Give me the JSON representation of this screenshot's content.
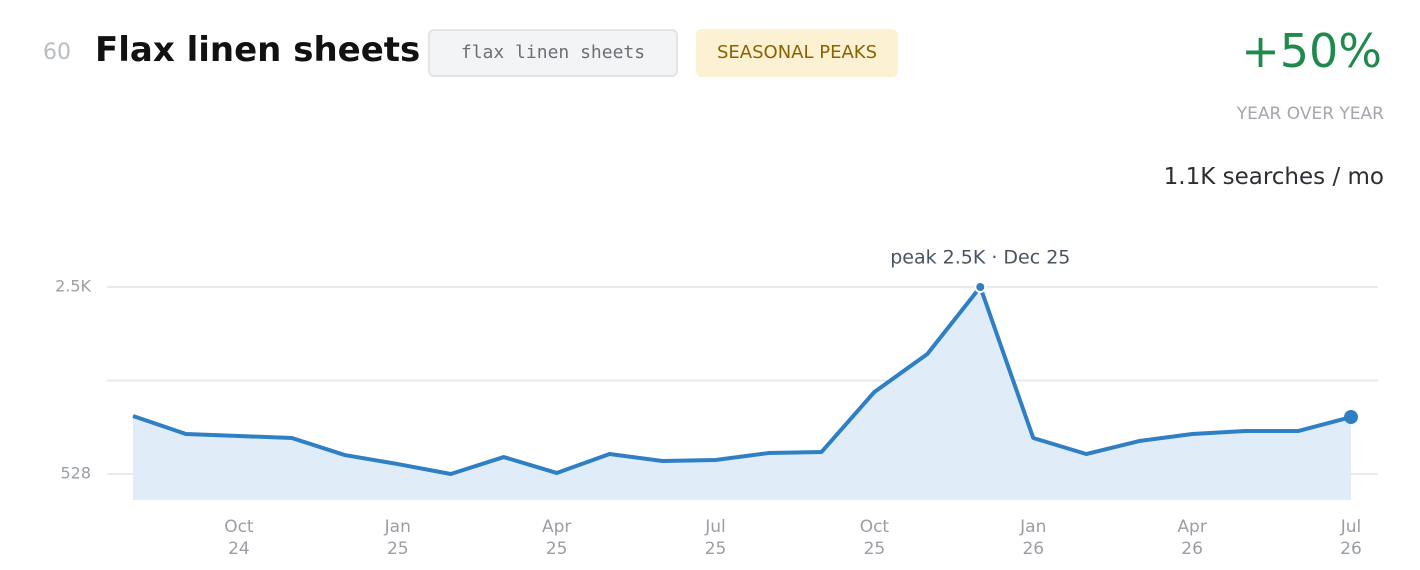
{
  "header": {
    "rank": "60",
    "title": "Flax linen sheets",
    "keyword": "flax linen sheets",
    "badge": "SEASONAL PEAKS",
    "change": "+50%",
    "change_label": "YEAR OVER YEAR",
    "volume": "1.1K searches / mo"
  },
  "chart_data": {
    "type": "line",
    "annotation": "peak 2.5K · Dec 25",
    "color": "#2f7fc4",
    "fill": "#e0ecf7",
    "x": [
      "2024-08",
      "2024-09",
      "2024-10",
      "2024-11",
      "2024-12",
      "2025-01",
      "2025-02",
      "2025-03",
      "2025-04",
      "2025-05",
      "2025-06",
      "2025-07",
      "2025-08",
      "2025-09",
      "2025-10",
      "2025-11",
      "2025-12",
      "2026-01",
      "2026-02",
      "2026-03",
      "2026-04",
      "2026-05",
      "2026-06",
      "2026-07"
    ],
    "values": [
      1140,
      950,
      929,
      908,
      728,
      633,
      528,
      707,
      539,
      739,
      665,
      676,
      749,
      760,
      1393,
      1793,
      2500,
      908,
      739,
      876,
      950,
      981,
      981,
      1129
    ],
    "ylim": [
      254,
      2500
    ],
    "yticks": [
      528,
      {
        "value": 2500,
        "label": "2.5K"
      }
    ],
    "gridlines": [
      528,
      1514,
      2500
    ],
    "xticks": [
      {
        "value": "2024-10",
        "month": "Oct",
        "year": "24"
      },
      {
        "value": "2025-01",
        "month": "Jan",
        "year": "25"
      },
      {
        "value": "2025-04",
        "month": "Apr",
        "year": "25"
      },
      {
        "value": "2025-07",
        "month": "Jul",
        "year": "25"
      },
      {
        "value": "2025-10",
        "month": "Oct",
        "year": "25"
      },
      {
        "value": "2026-01",
        "month": "Jan",
        "year": "26"
      },
      {
        "value": "2026-04",
        "month": "Apr",
        "year": "26"
      },
      {
        "value": "2026-07",
        "month": "Jul",
        "year": "26"
      }
    ]
  }
}
